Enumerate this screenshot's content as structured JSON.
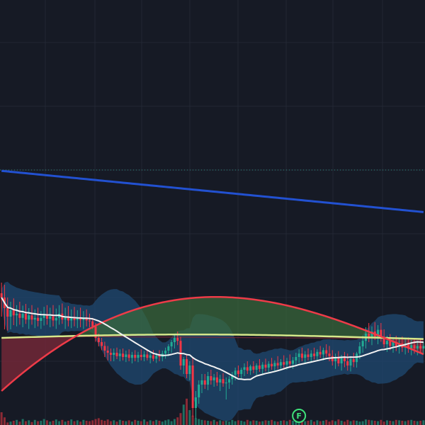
{
  "colors": {
    "background": "#161a25",
    "grid": "#222733",
    "up": "#22ab94",
    "down": "#f23645",
    "volume_up": "#1f6f62",
    "volume_down": "#8c2a35",
    "ma_long": "#2251d1",
    "ma_red": "#ee3b48",
    "ma_white": "#f2f2f2",
    "ma_yellow": "#d6e88a",
    "bb_fill": "#1f4a72",
    "cloud_green": "#3a6b3a",
    "cloud_red": "#7d2a3a",
    "dotted_level": "#2c8f85",
    "marker": "#3ee07a"
  },
  "marker": {
    "label": "F",
    "bar_index": 98
  },
  "chart_data": {
    "type": "candlestick",
    "price_range": [
      0,
      1000
    ],
    "volume_range": [
      0,
      100
    ],
    "grid": true,
    "dotted_level": 600,
    "candles": [
      {
        "o": 310,
        "h": 335,
        "l": 255,
        "c": 300
      },
      {
        "o": 300,
        "h": 330,
        "l": 225,
        "c": 275
      },
      {
        "o": 275,
        "h": 300,
        "l": 222,
        "c": 255
      },
      {
        "o": 255,
        "h": 290,
        "l": 225,
        "c": 270
      },
      {
        "o": 270,
        "h": 298,
        "l": 235,
        "c": 258
      },
      {
        "o": 258,
        "h": 282,
        "l": 232,
        "c": 262
      },
      {
        "o": 262,
        "h": 290,
        "l": 236,
        "c": 252
      },
      {
        "o": 252,
        "h": 281,
        "l": 230,
        "c": 262
      },
      {
        "o": 262,
        "h": 285,
        "l": 238,
        "c": 248
      },
      {
        "o": 248,
        "h": 275,
        "l": 226,
        "c": 258
      },
      {
        "o": 258,
        "h": 282,
        "l": 236,
        "c": 248
      },
      {
        "o": 248,
        "h": 272,
        "l": 228,
        "c": 252
      },
      {
        "o": 252,
        "h": 276,
        "l": 232,
        "c": 245
      },
      {
        "o": 245,
        "h": 268,
        "l": 226,
        "c": 252
      },
      {
        "o": 252,
        "h": 278,
        "l": 234,
        "c": 258
      },
      {
        "o": 258,
        "h": 282,
        "l": 236,
        "c": 250
      },
      {
        "o": 250,
        "h": 276,
        "l": 230,
        "c": 256
      },
      {
        "o": 256,
        "h": 282,
        "l": 232,
        "c": 246
      },
      {
        "o": 246,
        "h": 274,
        "l": 226,
        "c": 252
      },
      {
        "o": 252,
        "h": 282,
        "l": 236,
        "c": 262
      },
      {
        "o": 262,
        "h": 286,
        "l": 238,
        "c": 248
      },
      {
        "o": 248,
        "h": 276,
        "l": 226,
        "c": 255
      },
      {
        "o": 255,
        "h": 280,
        "l": 232,
        "c": 246
      },
      {
        "o": 246,
        "h": 272,
        "l": 228,
        "c": 253
      },
      {
        "o": 253,
        "h": 278,
        "l": 232,
        "c": 247
      },
      {
        "o": 247,
        "h": 270,
        "l": 228,
        "c": 252
      },
      {
        "o": 252,
        "h": 276,
        "l": 230,
        "c": 247
      },
      {
        "o": 247,
        "h": 268,
        "l": 226,
        "c": 252
      },
      {
        "o": 252,
        "h": 272,
        "l": 232,
        "c": 246
      },
      {
        "o": 246,
        "h": 262,
        "l": 230,
        "c": 244
      },
      {
        "o": 244,
        "h": 252,
        "l": 226,
        "c": 232
      },
      {
        "o": 232,
        "h": 240,
        "l": 196,
        "c": 205
      },
      {
        "o": 205,
        "h": 215,
        "l": 185,
        "c": 195
      },
      {
        "o": 195,
        "h": 205,
        "l": 176,
        "c": 186
      },
      {
        "o": 186,
        "h": 196,
        "l": 160,
        "c": 175
      },
      {
        "o": 175,
        "h": 186,
        "l": 152,
        "c": 170
      },
      {
        "o": 170,
        "h": 180,
        "l": 150,
        "c": 165
      },
      {
        "o": 165,
        "h": 180,
        "l": 150,
        "c": 170
      },
      {
        "o": 170,
        "h": 182,
        "l": 155,
        "c": 162
      },
      {
        "o": 162,
        "h": 178,
        "l": 150,
        "c": 168
      },
      {
        "o": 168,
        "h": 180,
        "l": 152,
        "c": 160
      },
      {
        "o": 160,
        "h": 175,
        "l": 148,
        "c": 166
      },
      {
        "o": 166,
        "h": 178,
        "l": 150,
        "c": 158
      },
      {
        "o": 158,
        "h": 172,
        "l": 145,
        "c": 165
      },
      {
        "o": 165,
        "h": 176,
        "l": 150,
        "c": 158
      },
      {
        "o": 158,
        "h": 172,
        "l": 148,
        "c": 165
      },
      {
        "o": 165,
        "h": 178,
        "l": 152,
        "c": 160
      },
      {
        "o": 160,
        "h": 174,
        "l": 150,
        "c": 166
      },
      {
        "o": 166,
        "h": 178,
        "l": 152,
        "c": 158
      },
      {
        "o": 158,
        "h": 172,
        "l": 145,
        "c": 164
      },
      {
        "o": 164,
        "h": 176,
        "l": 150,
        "c": 156
      },
      {
        "o": 156,
        "h": 170,
        "l": 146,
        "c": 163
      },
      {
        "o": 163,
        "h": 176,
        "l": 150,
        "c": 160
      },
      {
        "o": 160,
        "h": 175,
        "l": 150,
        "c": 168
      },
      {
        "o": 168,
        "h": 182,
        "l": 156,
        "c": 175
      },
      {
        "o": 175,
        "h": 190,
        "l": 162,
        "c": 185
      },
      {
        "o": 185,
        "h": 200,
        "l": 170,
        "c": 195
      },
      {
        "o": 195,
        "h": 215,
        "l": 180,
        "c": 205
      },
      {
        "o": 205,
        "h": 220,
        "l": 188,
        "c": 198
      },
      {
        "o": 198,
        "h": 208,
        "l": 130,
        "c": 140
      },
      {
        "o": 140,
        "h": 160,
        "l": 120,
        "c": 155
      },
      {
        "o": 155,
        "h": 165,
        "l": 110,
        "c": 120
      },
      {
        "o": 120,
        "h": 150,
        "l": 105,
        "c": 140
      },
      {
        "o": 140,
        "h": 160,
        "l": 20,
        "c": 40
      },
      {
        "o": 40,
        "h": 80,
        "l": 15,
        "c": 65
      },
      {
        "o": 65,
        "h": 105,
        "l": 50,
        "c": 95
      },
      {
        "o": 95,
        "h": 120,
        "l": 75,
        "c": 105
      },
      {
        "o": 105,
        "h": 120,
        "l": 85,
        "c": 95
      },
      {
        "o": 95,
        "h": 125,
        "l": 82,
        "c": 115
      },
      {
        "o": 115,
        "h": 130,
        "l": 95,
        "c": 105
      },
      {
        "o": 105,
        "h": 120,
        "l": 90,
        "c": 112
      },
      {
        "o": 112,
        "h": 125,
        "l": 92,
        "c": 100
      },
      {
        "o": 100,
        "h": 118,
        "l": 80,
        "c": 108
      },
      {
        "o": 108,
        "h": 122,
        "l": 90,
        "c": 98
      },
      {
        "o": 98,
        "h": 112,
        "l": 60,
        "c": 100
      },
      {
        "o": 100,
        "h": 115,
        "l": 85,
        "c": 108
      },
      {
        "o": 108,
        "h": 125,
        "l": 95,
        "c": 118
      },
      {
        "o": 118,
        "h": 135,
        "l": 105,
        "c": 128
      },
      {
        "o": 128,
        "h": 140,
        "l": 112,
        "c": 120
      },
      {
        "o": 120,
        "h": 135,
        "l": 108,
        "c": 130
      },
      {
        "o": 130,
        "h": 145,
        "l": 115,
        "c": 136
      },
      {
        "o": 136,
        "h": 150,
        "l": 120,
        "c": 128
      },
      {
        "o": 128,
        "h": 142,
        "l": 118,
        "c": 138
      },
      {
        "o": 138,
        "h": 150,
        "l": 122,
        "c": 130
      },
      {
        "o": 130,
        "h": 145,
        "l": 118,
        "c": 140
      },
      {
        "o": 140,
        "h": 155,
        "l": 125,
        "c": 132
      },
      {
        "o": 132,
        "h": 148,
        "l": 120,
        "c": 142
      },
      {
        "o": 142,
        "h": 156,
        "l": 126,
        "c": 135
      },
      {
        "o": 135,
        "h": 150,
        "l": 122,
        "c": 144
      },
      {
        "o": 144,
        "h": 158,
        "l": 130,
        "c": 138
      },
      {
        "o": 138,
        "h": 152,
        "l": 126,
        "c": 146
      },
      {
        "o": 146,
        "h": 162,
        "l": 132,
        "c": 140
      },
      {
        "o": 140,
        "h": 155,
        "l": 128,
        "c": 148
      },
      {
        "o": 148,
        "h": 164,
        "l": 134,
        "c": 142
      },
      {
        "o": 142,
        "h": 158,
        "l": 130,
        "c": 150
      },
      {
        "o": 150,
        "h": 166,
        "l": 136,
        "c": 144
      },
      {
        "o": 144,
        "h": 160,
        "l": 132,
        "c": 152
      },
      {
        "o": 152,
        "h": 170,
        "l": 140,
        "c": 160
      },
      {
        "o": 160,
        "h": 178,
        "l": 146,
        "c": 168
      },
      {
        "o": 168,
        "h": 182,
        "l": 150,
        "c": 158
      },
      {
        "o": 158,
        "h": 174,
        "l": 146,
        "c": 166
      },
      {
        "o": 166,
        "h": 180,
        "l": 152,
        "c": 160
      },
      {
        "o": 160,
        "h": 176,
        "l": 148,
        "c": 168
      },
      {
        "o": 168,
        "h": 182,
        "l": 154,
        "c": 162
      },
      {
        "o": 162,
        "h": 178,
        "l": 150,
        "c": 172
      },
      {
        "o": 172,
        "h": 186,
        "l": 158,
        "c": 166
      },
      {
        "o": 166,
        "h": 182,
        "l": 152,
        "c": 176
      },
      {
        "o": 176,
        "h": 190,
        "l": 160,
        "c": 168
      },
      {
        "o": 168,
        "h": 186,
        "l": 150,
        "c": 162
      },
      {
        "o": 162,
        "h": 176,
        "l": 140,
        "c": 150
      },
      {
        "o": 150,
        "h": 168,
        "l": 132,
        "c": 160
      },
      {
        "o": 160,
        "h": 174,
        "l": 138,
        "c": 145
      },
      {
        "o": 145,
        "h": 165,
        "l": 128,
        "c": 158
      },
      {
        "o": 158,
        "h": 172,
        "l": 136,
        "c": 150
      },
      {
        "o": 150,
        "h": 168,
        "l": 128,
        "c": 140
      },
      {
        "o": 140,
        "h": 162,
        "l": 126,
        "c": 155
      },
      {
        "o": 155,
        "h": 170,
        "l": 136,
        "c": 148
      },
      {
        "o": 148,
        "h": 172,
        "l": 135,
        "c": 168
      },
      {
        "o": 168,
        "h": 195,
        "l": 155,
        "c": 185
      },
      {
        "o": 185,
        "h": 210,
        "l": 170,
        "c": 198
      },
      {
        "o": 198,
        "h": 230,
        "l": 180,
        "c": 215
      },
      {
        "o": 215,
        "h": 240,
        "l": 195,
        "c": 205
      },
      {
        "o": 205,
        "h": 232,
        "l": 188,
        "c": 220
      },
      {
        "o": 220,
        "h": 242,
        "l": 200,
        "c": 208
      },
      {
        "o": 208,
        "h": 235,
        "l": 190,
        "c": 224
      },
      {
        "o": 224,
        "h": 240,
        "l": 196,
        "c": 205
      },
      {
        "o": 205,
        "h": 225,
        "l": 182,
        "c": 190
      },
      {
        "o": 190,
        "h": 210,
        "l": 172,
        "c": 198
      },
      {
        "o": 198,
        "h": 214,
        "l": 176,
        "c": 186
      },
      {
        "o": 186,
        "h": 206,
        "l": 170,
        "c": 195
      },
      {
        "o": 195,
        "h": 210,
        "l": 174,
        "c": 184
      },
      {
        "o": 184,
        "h": 204,
        "l": 168,
        "c": 192
      },
      {
        "o": 192,
        "h": 208,
        "l": 172,
        "c": 182
      },
      {
        "o": 182,
        "h": 202,
        "l": 166,
        "c": 190
      },
      {
        "o": 190,
        "h": 206,
        "l": 170,
        "c": 180
      },
      {
        "o": 180,
        "h": 200,
        "l": 164,
        "c": 188
      },
      {
        "o": 188,
        "h": 204,
        "l": 168,
        "c": 180
      },
      {
        "o": 180,
        "h": 198,
        "l": 164,
        "c": 186
      },
      {
        "o": 186,
        "h": 202,
        "l": 170,
        "c": 180
      },
      {
        "o": 180,
        "h": 196,
        "l": 166,
        "c": 186
      }
    ],
    "volumes": [
      30,
      18,
      6,
      8,
      10,
      12,
      8,
      14,
      9,
      11,
      7,
      12,
      9,
      10,
      14,
      11,
      8,
      10,
      13,
      9,
      12,
      8,
      10,
      13,
      9,
      11,
      8,
      12,
      10,
      9,
      11,
      14,
      16,
      12,
      10,
      13,
      9,
      11,
      8,
      12,
      10,
      9,
      11,
      8,
      12,
      10,
      9,
      13,
      8,
      11,
      9,
      12,
      10,
      8,
      11,
      13,
      9,
      14,
      18,
      28,
      48,
      62,
      35,
      22,
      16,
      14,
      12,
      11,
      10,
      9,
      12,
      8,
      11,
      9,
      10,
      8,
      12,
      9,
      11,
      10,
      8,
      12,
      9,
      11,
      10,
      8,
      9,
      11,
      10,
      12,
      9,
      8,
      10,
      11,
      9,
      12,
      10,
      8,
      11,
      13,
      9,
      10,
      12,
      8,
      11,
      9,
      10,
      12,
      8,
      11,
      9,
      13,
      10,
      8,
      12,
      9,
      11,
      10,
      8,
      9,
      13,
      12,
      11,
      10,
      9,
      12,
      8,
      11,
      10,
      9,
      12,
      11,
      10,
      9,
      11,
      12,
      10,
      9,
      10,
      11
    ]
  }
}
